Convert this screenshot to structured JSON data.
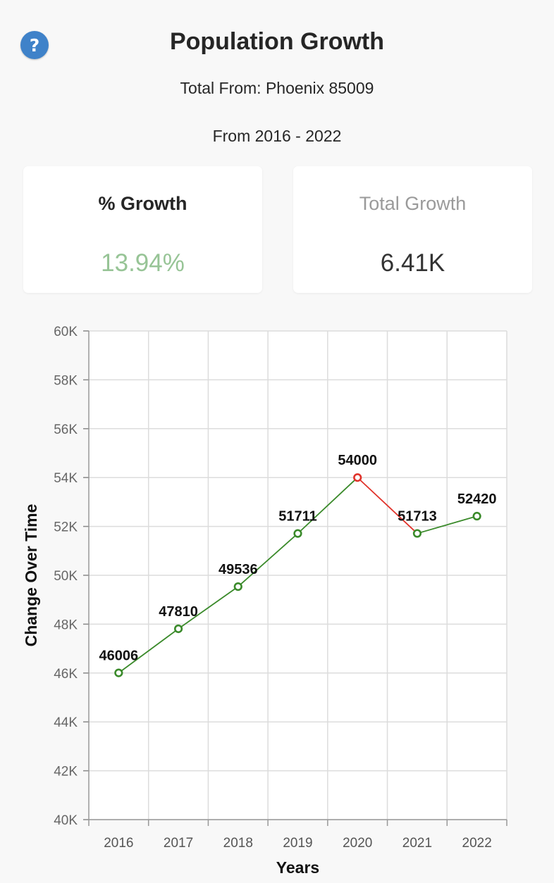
{
  "header": {
    "help_icon": "question-circle-icon",
    "help_symbol": "?",
    "title": "Population Growth",
    "subtitle": "Total From: Phoenix 85009",
    "date_range": "From 2016 - 2022"
  },
  "stats": {
    "percent_growth": {
      "label": "% Growth",
      "value": "13.94%"
    },
    "total_growth": {
      "label": "Total Growth",
      "value": "6.41K"
    }
  },
  "colors": {
    "help_icon": "#3f82c9",
    "increase": "#3a8a2a",
    "decrease": "#e0322a",
    "percent_value": "#97c496"
  },
  "chart_data": {
    "type": "line",
    "xlabel": "Years",
    "ylabel": "Change Over Time",
    "categories": [
      "2016",
      "2017",
      "2018",
      "2019",
      "2020",
      "2021",
      "2022"
    ],
    "values": [
      46006,
      47810,
      49536,
      51711,
      54000,
      51713,
      52420
    ],
    "ylim": [
      40000,
      60000
    ],
    "yticks": [
      40000,
      42000,
      44000,
      46000,
      48000,
      50000,
      52000,
      54000,
      56000,
      58000,
      60000
    ],
    "ytick_labels": [
      "40K",
      "42K",
      "44K",
      "46K",
      "48K",
      "50K",
      "52K",
      "54K",
      "56K",
      "58K",
      "60K"
    ],
    "grid": true,
    "legend": "none",
    "segment_colors": "green for increase, red for decrease"
  }
}
